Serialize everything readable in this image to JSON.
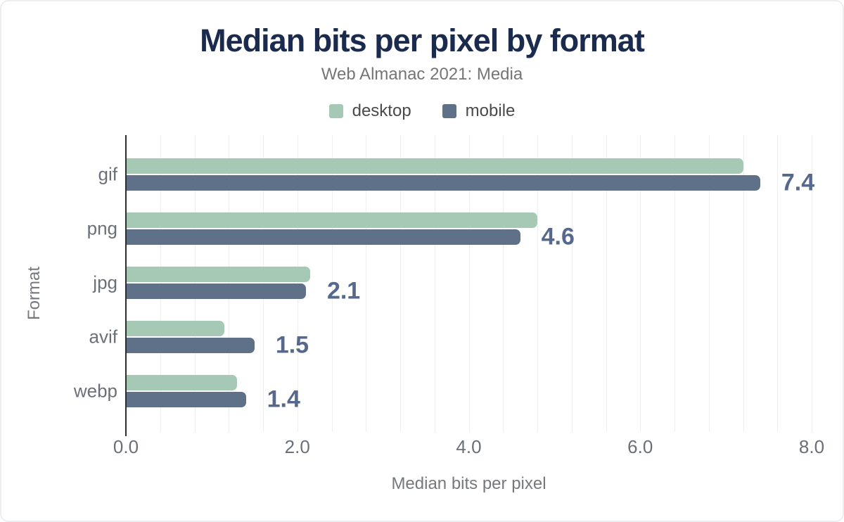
{
  "header": {
    "title": "Median bits per pixel by format",
    "subtitle": "Web Almanac 2021: Media"
  },
  "legend": [
    {
      "label": "desktop",
      "color": "#a6c9b5"
    },
    {
      "label": "mobile",
      "color": "#5e7188"
    }
  ],
  "chart_data": {
    "type": "bar",
    "orientation": "horizontal",
    "title": "Median bits per pixel by format",
    "subtitle": "Web Almanac 2021: Media",
    "categories": [
      "gif",
      "png",
      "jpg",
      "avif",
      "webp"
    ],
    "series": [
      {
        "name": "desktop",
        "color": "#a6c9b5",
        "values": [
          7.2,
          4.8,
          2.15,
          1.15,
          1.3
        ]
      },
      {
        "name": "mobile",
        "color": "#5e7188",
        "values": [
          7.4,
          4.6,
          2.1,
          1.5,
          1.4
        ]
      }
    ],
    "annotations": [
      "7.4",
      "4.6",
      "2.1",
      "1.5",
      "1.4"
    ],
    "annotation_series": "mobile",
    "xlabel": "Median bits per pixel",
    "ylabel": "Format",
    "xlim": [
      0,
      8
    ],
    "xticks": [
      "0.0",
      "2.0",
      "4.0",
      "6.0",
      "8.0"
    ],
    "grid": {
      "minor_interval": 0.4,
      "color": "#efefef"
    },
    "colors": {
      "annotation": "#56698c",
      "axis_line": "#2e2e2e",
      "tick_text": "#6b7078"
    }
  }
}
